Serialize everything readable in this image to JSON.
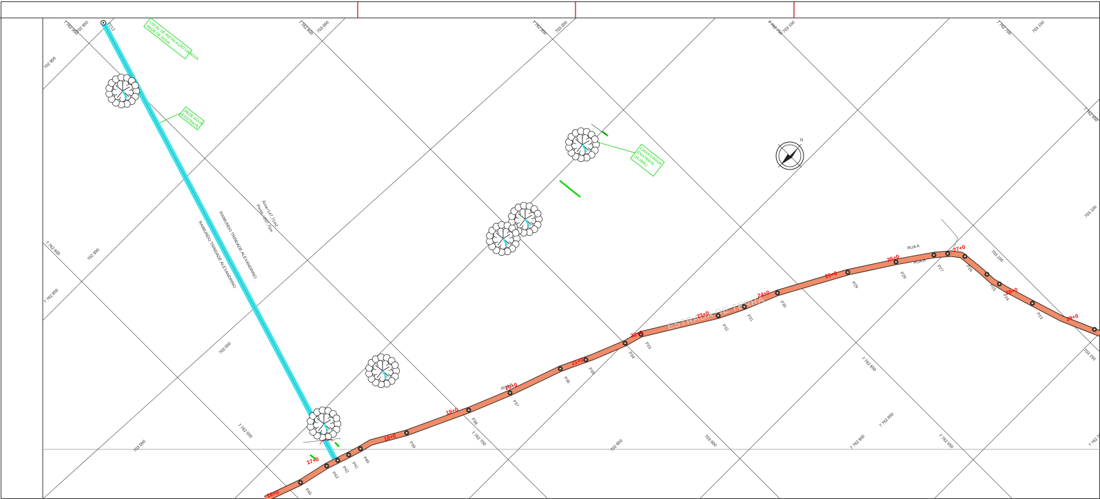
{
  "colors": {
    "road_fill": "#f08c6a",
    "road_edge": "#3a2a22",
    "water_line": "#3fe3ea",
    "station_text": "#ff0000",
    "annotation_green": "#00d400",
    "frame_red": "#c00000",
    "grid": "#555555"
  },
  "grid_labels": [
    {
      "text": "7 762 950",
      "key": "g1"
    },
    {
      "text": "702 950",
      "key": "g2"
    },
    {
      "text": "702 900",
      "key": "g3"
    },
    {
      "text": "703 000",
      "key": "g4"
    },
    {
      "text": "7 762 800",
      "key": "g5"
    },
    {
      "text": "703 050",
      "key": "g6"
    },
    {
      "text": "7 762 850",
      "key": "g7"
    },
    {
      "text": "703 100",
      "key": "g8"
    },
    {
      "text": "7 762 750",
      "key": "g9"
    },
    {
      "text": "7 762 700",
      "key": "g10"
    },
    {
      "text": "703 150",
      "key": "g11"
    },
    {
      "text": "703 100",
      "key": "g12"
    },
    {
      "text": "7 762 650",
      "key": "g13"
    },
    {
      "text": "7 762 600",
      "key": "g14"
    },
    {
      "text": "702 900",
      "key": "g15"
    },
    {
      "text": "7 762 850",
      "key": "g16"
    },
    {
      "text": "703 100",
      "key": "g17"
    },
    {
      "text": "703 150",
      "key": "g18"
    },
    {
      "text": "703 050",
      "key": "g19"
    },
    {
      "text": "7 762 650",
      "key": "g20"
    },
    {
      "text": "7 762 950",
      "key": "g21"
    },
    {
      "text": "703 000",
      "key": "g22"
    },
    {
      "text": "7 762 550",
      "key": "g23"
    },
    {
      "text": "7 762 750",
      "key": "g24"
    },
    {
      "text": "702 950",
      "key": "g25"
    },
    {
      "text": "703 000",
      "key": "g26"
    },
    {
      "text": "7 762 800",
      "key": "g27"
    },
    {
      "text": "7 762 550",
      "key": "g28"
    },
    {
      "text": "7 762 700",
      "key": "g29"
    }
  ],
  "stations": [
    "16+0",
    "17+0",
    "18+0",
    "19+0",
    "20+0",
    "21+0",
    "22+0",
    "23+0",
    "24+0",
    "25+0",
    "26+0",
    "27+0",
    "28+0",
    "29+0"
  ],
  "point_labels": [
    "P212",
    "P45",
    "P43",
    "P42",
    "P41",
    "P40",
    "P39",
    "P38",
    "P37",
    "P36",
    "P35",
    "P34",
    "P33",
    "P32",
    "P31",
    "P30",
    "P29",
    "P28",
    "P27",
    "P26",
    "P25",
    "P24",
    "P23"
  ],
  "road_names": [
    "RUA A",
    "RUA A",
    "RUA A"
  ],
  "road_faint_label": "ESTRADA DE TERRA",
  "property": {
    "area": "Área=147,71m2",
    "perimeter": "Perim.=207,75m",
    "owner_1": "RAIMUNDO TRINDADE ALEXANDRINO",
    "owner_2": "RAIMUNDO TRINDADE ALEXANDRINO"
  },
  "annotations": [
    {
      "key": "a1",
      "lines": [
        "LOCAL DE INSTALAÇÃO DA NOVA",
        "REDE DE ÁGUA"
      ]
    },
    {
      "key": "a2",
      "lines": [
        "REDE ÁGUA",
        "EXISTENTE"
      ]
    },
    {
      "key": "a3",
      "lines": [
        "CAIXA D'ÁGUA",
        "EXISTENTE",
        "(10.000L)"
      ]
    }
  ],
  "north_label": "N"
}
